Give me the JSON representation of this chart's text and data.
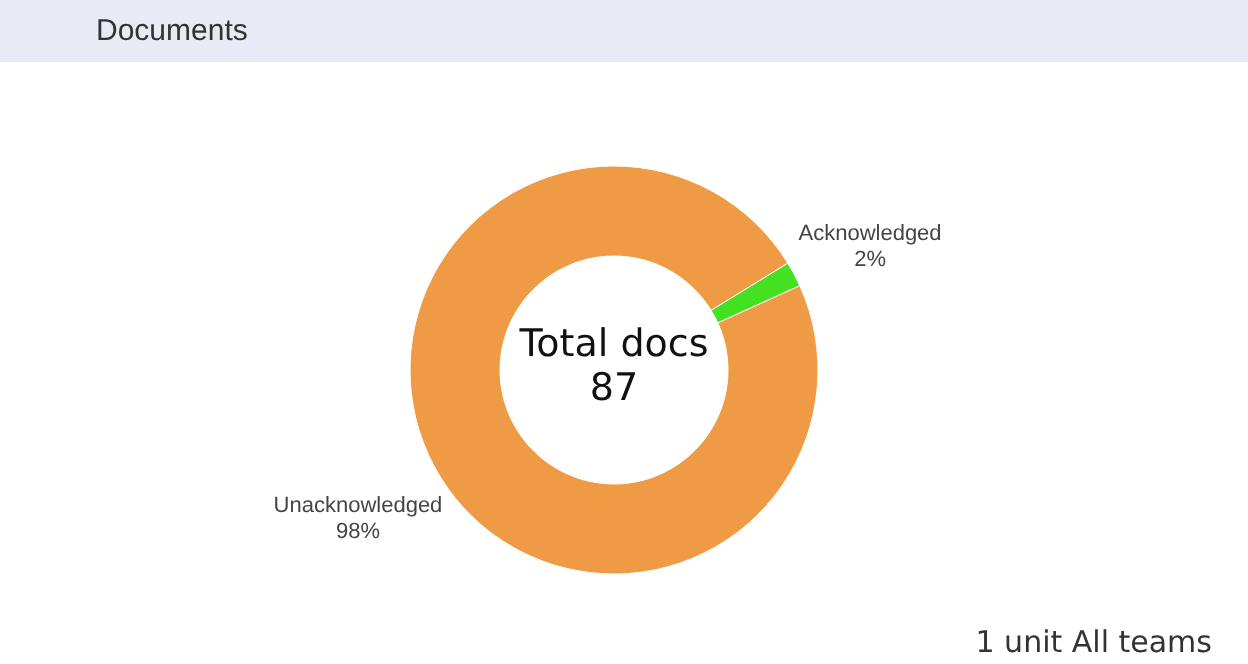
{
  "chart_data": {
    "type": "donut",
    "title": "Documents",
    "categories": [
      "Acknowledged",
      "Unacknowledged"
    ],
    "values": [
      2,
      98
    ],
    "colors": [
      "#44e022",
      "#ef9a44"
    ],
    "value_labels": [
      "2%",
      "98%"
    ],
    "annotations": [
      "Total docs\n87",
      "1 unit  All teams"
    ]
  }
}
